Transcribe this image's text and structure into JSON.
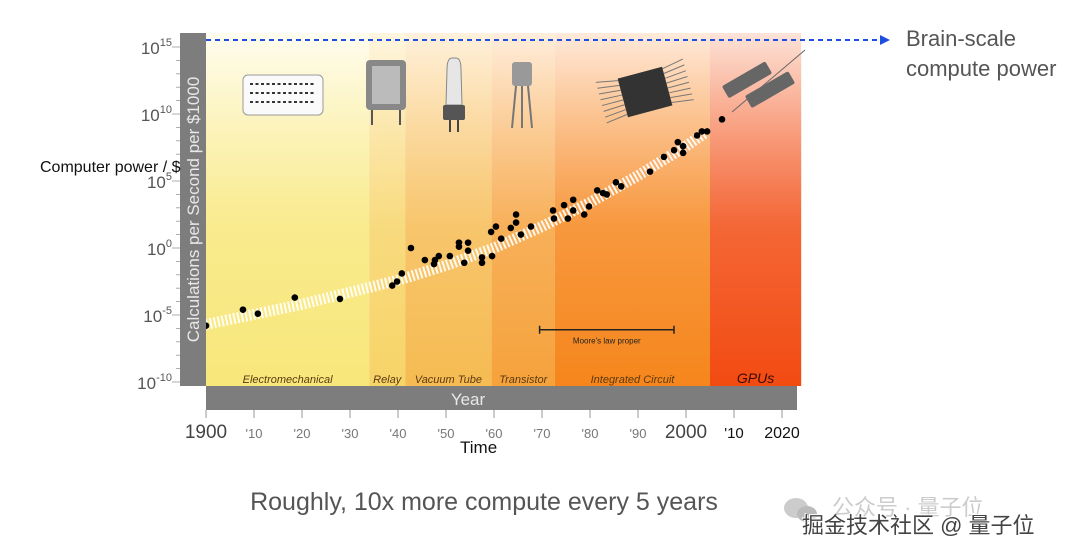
{
  "chart_data": {
    "type": "scatter",
    "title": "",
    "ylabel": "Calculations per Second per $1000",
    "ylabel_outer": "Computer power / $",
    "xlabel": "Year",
    "xlabel_outer": "Time",
    "y_scale": "log10",
    "ylim_exponent": [
      -10,
      15
    ],
    "xlim": [
      1900,
      2024
    ],
    "y_ticks": [
      {
        "base": "10",
        "exp": "15",
        "value": 15
      },
      {
        "base": "10",
        "exp": "10",
        "value": 10
      },
      {
        "base": "10",
        "exp": "5",
        "value": 5
      },
      {
        "base": "10",
        "exp": "0",
        "value": 0
      },
      {
        "base": "10",
        "exp": "-5",
        "value": -5
      },
      {
        "base": "10",
        "exp": "-10",
        "value": -10
      }
    ],
    "x_ticks": [
      {
        "label": "1900",
        "year": 1900,
        "style": "major"
      },
      {
        "label": "'10",
        "year": 1910,
        "style": "minor"
      },
      {
        "label": "'20",
        "year": 1920,
        "style": "minor"
      },
      {
        "label": "'30",
        "year": 1930,
        "style": "minor"
      },
      {
        "label": "'40",
        "year": 1940,
        "style": "minor"
      },
      {
        "label": "'50",
        "year": 1950,
        "style": "minor"
      },
      {
        "label": "'60",
        "year": 1960,
        "style": "minor"
      },
      {
        "label": "'70",
        "year": 1970,
        "style": "minor"
      },
      {
        "label": "'80",
        "year": 1980,
        "style": "minor"
      },
      {
        "label": "'90",
        "year": 1990,
        "style": "minor"
      },
      {
        "label": "2000",
        "year": 2000,
        "style": "major"
      },
      {
        "label": "'10",
        "year": 2010,
        "style": "dark"
      },
      {
        "label": "2020",
        "year": 2020,
        "style": "dark"
      }
    ],
    "eras": [
      {
        "name": "Electromechanical",
        "start": 1900,
        "end": 1934,
        "color_top": "#fffdf0",
        "color_bottom": "#f8e77a",
        "icon": "punch-card"
      },
      {
        "name": "Relay",
        "start": 1934,
        "end": 1941.5,
        "color_top": "#fff6e0",
        "color_bottom": "#f7d468",
        "icon": "relay"
      },
      {
        "name": "Vacuum Tube",
        "start": 1941.5,
        "end": 1959.5,
        "color_top": "#fff1dc",
        "color_bottom": "#f6bb52",
        "icon": "vacuum-tube"
      },
      {
        "name": "Transistor",
        "start": 1959.5,
        "end": 1972.7,
        "color_top": "#ffeedd",
        "color_bottom": "#f6a23c",
        "icon": "transistor"
      },
      {
        "name": "Integrated Circuit",
        "start": 1972.7,
        "end": 2005,
        "color_top": "#ffeadb",
        "color_bottom": "#f6861c",
        "icon": "integrated-circuit"
      },
      {
        "name": "GPUs",
        "start": 2005,
        "end": 2024,
        "color_top": "#fde3d8",
        "color_bottom": "#f24b12",
        "icon": "gpu"
      }
    ],
    "annotation": {
      "label": "Moore's law proper",
      "start": 1969.5,
      "end": 1997.5,
      "value": -6.1
    },
    "brain_scale": {
      "value": 15.5,
      "label_line1": "Brain-scale",
      "label_line2": "compute power",
      "color": "#1f4fe0"
    },
    "trend": [
      [
        1900,
        -5.7
      ],
      [
        1920,
        -4.2
      ],
      [
        1940,
        -2.4
      ],
      [
        1950,
        -1.3
      ],
      [
        1960,
        0.0
      ],
      [
        1970,
        1.6
      ],
      [
        1980,
        3.4
      ],
      [
        1990,
        5.4
      ],
      [
        2000,
        7.6
      ],
      [
        2004,
        8.6
      ]
    ],
    "points": [
      [
        1900.0,
        -5.8
      ],
      [
        1907.7,
        -4.6
      ],
      [
        1910.8,
        -4.9
      ],
      [
        1918.5,
        -3.7
      ],
      [
        1927.9,
        -3.8
      ],
      [
        1938.8,
        -2.8
      ],
      [
        1939.8,
        -2.5
      ],
      [
        1940.8,
        -1.9
      ],
      [
        1942.7,
        0.0
      ],
      [
        1945.6,
        -0.9
      ],
      [
        1947.5,
        -1.2
      ],
      [
        1947.7,
        -0.9
      ],
      [
        1948.5,
        -0.6
      ],
      [
        1950.8,
        -0.6
      ],
      [
        1952.7,
        0.4
      ],
      [
        1952.7,
        0.1
      ],
      [
        1954.6,
        0.4
      ],
      [
        1954.6,
        -0.2
      ],
      [
        1953.8,
        -1.1
      ],
      [
        1957.5,
        -0.7
      ],
      [
        1957.5,
        -1.1
      ],
      [
        1959.6,
        -0.6
      ],
      [
        1959.4,
        1.2
      ],
      [
        1960.4,
        1.6
      ],
      [
        1961.5,
        0.7
      ],
      [
        1963.5,
        1.5
      ],
      [
        1964.6,
        2.5
      ],
      [
        1964.6,
        1.9
      ],
      [
        1965.6,
        1.0
      ],
      [
        1967.7,
        1.6
      ],
      [
        1972.3,
        2.8
      ],
      [
        1972.5,
        2.2
      ],
      [
        1974.6,
        3.2
      ],
      [
        1975.4,
        2.2
      ],
      [
        1976.5,
        3.6
      ],
      [
        1976.5,
        2.8
      ],
      [
        1978.8,
        2.5
      ],
      [
        1979.8,
        3.1
      ],
      [
        1981.5,
        4.3
      ],
      [
        1982.7,
        4.1
      ],
      [
        1983.5,
        4.0
      ],
      [
        1985.4,
        4.9
      ],
      [
        1986.5,
        4.6
      ],
      [
        1992.5,
        5.7
      ],
      [
        1995.4,
        6.8
      ],
      [
        1997.5,
        7.3
      ],
      [
        1998.3,
        7.9
      ],
      [
        1999.4,
        7.6
      ],
      [
        1999.4,
        7.1
      ],
      [
        2002.3,
        8.4
      ],
      [
        2003.3,
        8.7
      ],
      [
        2004.4,
        8.7
      ],
      [
        2007.5,
        9.6
      ]
    ],
    "grid": false,
    "legend": "none"
  },
  "caption": "Roughly, 10x more compute every 5 years",
  "watermark": {
    "line1": "公众号 · 量子位",
    "line2": "掘金技术社区 @ 量子位"
  }
}
